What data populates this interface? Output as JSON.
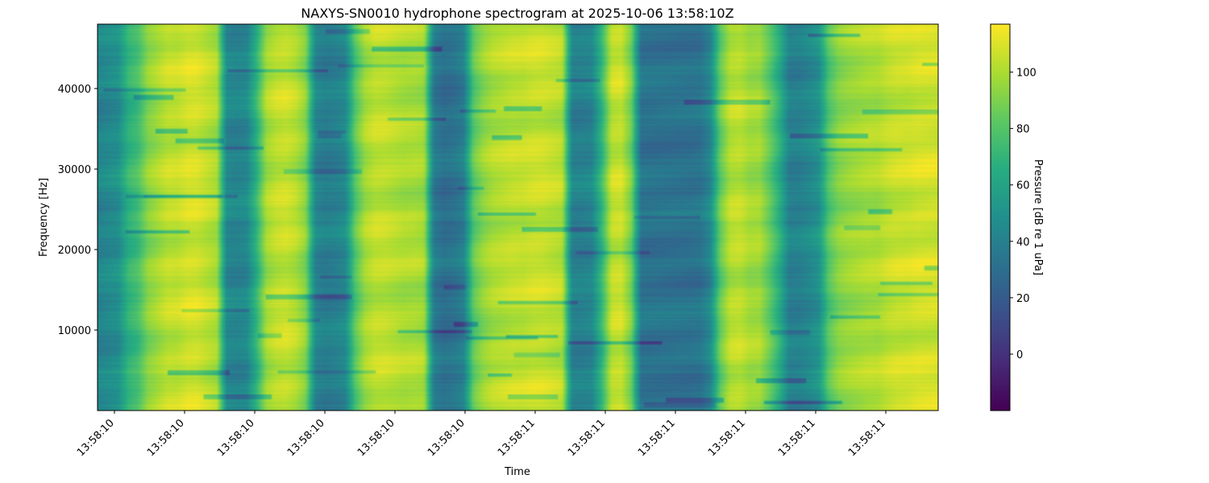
{
  "chart_data": {
    "type": "heatmap",
    "title": "NAXYS-SN0010 hydrophone spectrogram at 2025-10-06 13:58:10Z",
    "xlabel": "Time",
    "ylabel": "Frequency [Hz]",
    "colorbar_label": "Pressure [dB re 1 uPa]",
    "colormap": "viridis",
    "ylim": [
      0,
      48000
    ],
    "yticks": [
      10000,
      20000,
      30000,
      40000
    ],
    "xticks": [
      "13:58:10",
      "13:58:10",
      "13:58:10",
      "13:58:10",
      "13:58:10",
      "13:58:10",
      "13:58:11",
      "13:58:11",
      "13:58:11",
      "13:58:11",
      "13:58:11",
      "13:58:11"
    ],
    "clim": [
      -20,
      117
    ],
    "cticks": [
      0,
      20,
      40,
      60,
      80,
      100
    ],
    "column_levels_db": [
      42,
      45,
      48,
      68,
      75,
      92,
      98,
      104,
      104,
      108,
      108,
      104,
      100,
      44,
      42,
      44,
      68,
      98,
      104,
      106,
      102,
      92,
      42,
      38,
      40,
      44,
      80,
      98,
      104,
      104,
      102,
      100,
      100,
      98,
      36,
      30,
      32,
      38,
      82,
      94,
      100,
      102,
      104,
      104,
      106,
      106,
      104,
      102,
      40,
      40,
      42,
      70,
      104,
      106,
      88,
      32,
      32,
      32,
      32,
      32,
      32,
      33,
      44,
      84,
      102,
      104,
      98,
      98,
      84,
      66,
      40,
      40,
      44,
      50,
      80,
      92,
      96,
      98,
      100,
      100,
      104,
      106,
      106,
      108,
      108,
      108
    ]
  }
}
